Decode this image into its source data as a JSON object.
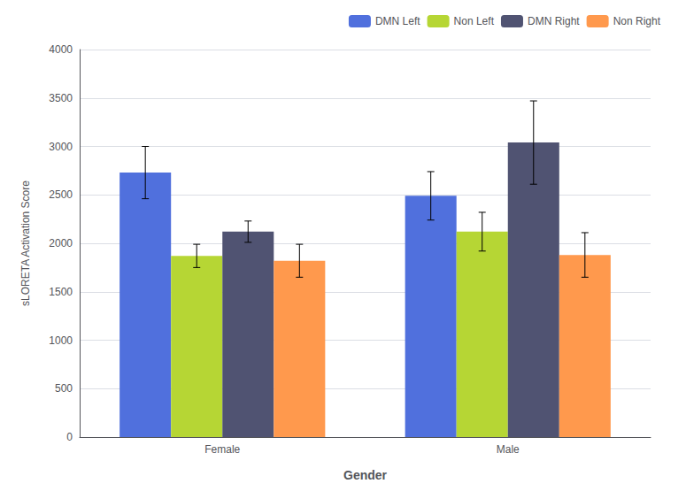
{
  "chart_data": {
    "type": "bar",
    "xlabel": "Gender",
    "ylabel": "sLORETA Activation Score",
    "categories": [
      "Female",
      "Male"
    ],
    "series": [
      {
        "name": "DMN Left",
        "values": [
          2730,
          2490
        ],
        "errors": [
          270,
          250
        ]
      },
      {
        "name": "Non Left",
        "values": [
          1870,
          2120
        ],
        "errors": [
          120,
          200
        ]
      },
      {
        "name": "DMN Right",
        "values": [
          2120,
          3040
        ],
        "errors": [
          110,
          430
        ]
      },
      {
        "name": "Non Right",
        "values": [
          1820,
          1880
        ],
        "errors": [
          170,
          230
        ]
      }
    ],
    "ylim": [
      0,
      4000
    ],
    "yticks": [
      0,
      500,
      1000,
      1500,
      2000,
      2500,
      3000,
      3500,
      4000
    ],
    "grid": true,
    "legend": "upper right"
  }
}
